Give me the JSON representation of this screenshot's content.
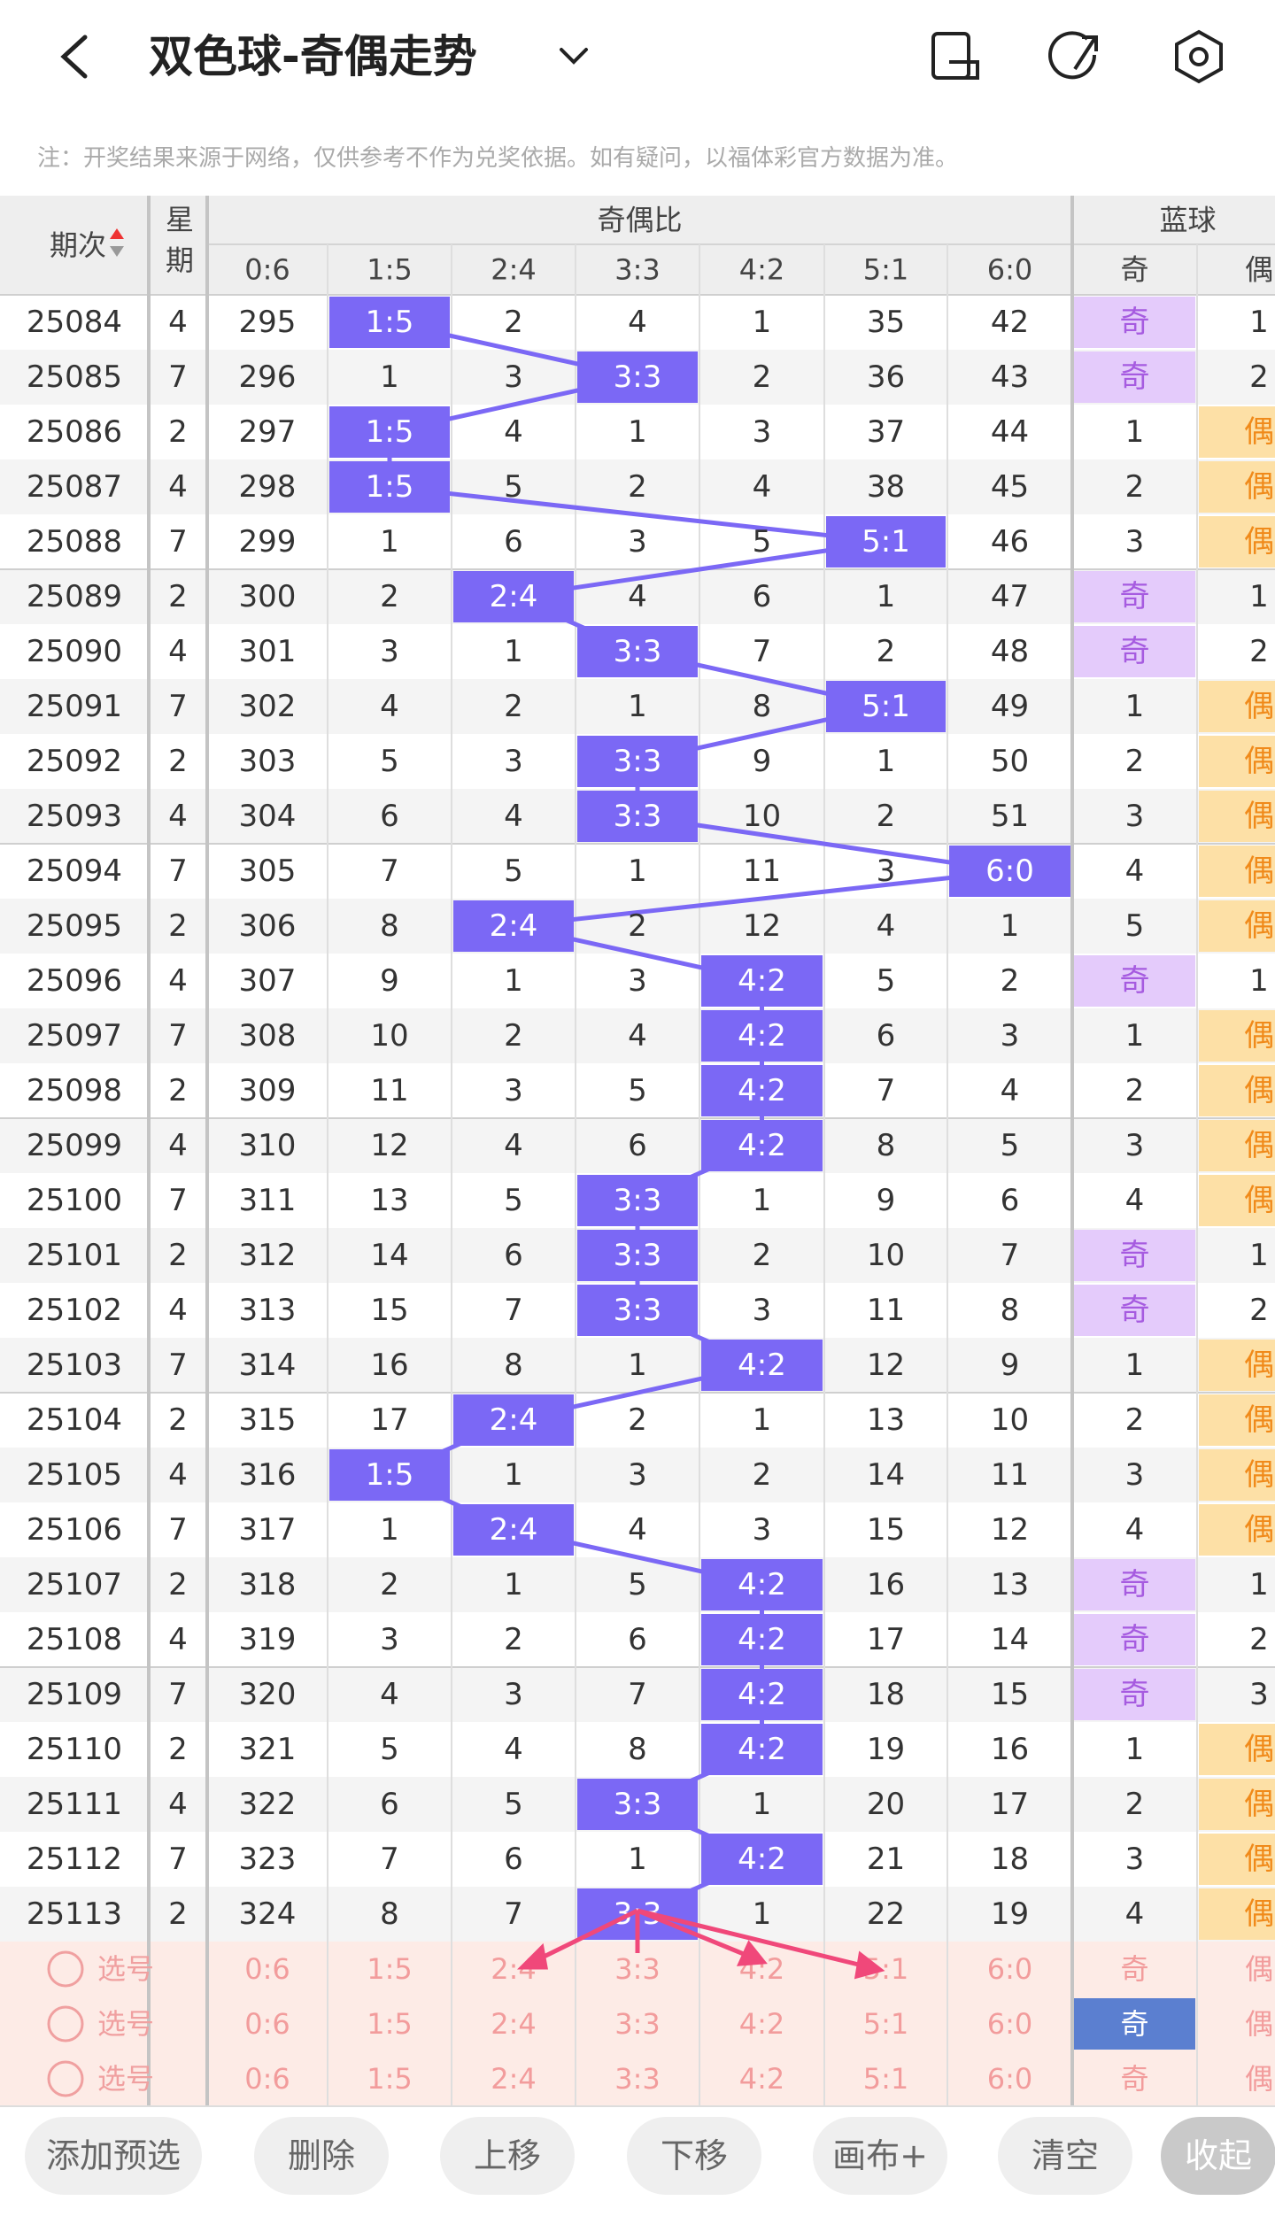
{
  "header": {
    "title": "双色球-奇偶走势"
  },
  "notice": "注：开奖结果来源于网络，仅供参考不作为兑奖依据。如有疑问，以福体彩官方数据为准。",
  "table": {
    "group_headers": {
      "period": "期次",
      "week": "星期",
      "ratio": "奇偶比",
      "blue": "蓝球"
    },
    "columns": [
      "0:6",
      "1:5",
      "2:4",
      "3:3",
      "4:2",
      "5:1",
      "6:0",
      "奇",
      "偶"
    ],
    "rows": [
      [
        "25084",
        "4",
        "295",
        "1:5",
        "2",
        "4",
        "1",
        "35",
        "42",
        "奇",
        "1"
      ],
      [
        "25085",
        "7",
        "296",
        "1",
        "3",
        "3:3",
        "2",
        "36",
        "43",
        "奇",
        "2"
      ],
      [
        "25086",
        "2",
        "297",
        "1:5",
        "4",
        "1",
        "3",
        "37",
        "44",
        "1",
        "偶"
      ],
      [
        "25087",
        "4",
        "298",
        "1:5",
        "5",
        "2",
        "4",
        "38",
        "45",
        "2",
        "偶"
      ],
      [
        "25088",
        "7",
        "299",
        "1",
        "6",
        "3",
        "5",
        "5:1",
        "46",
        "3",
        "偶"
      ],
      [
        "25089",
        "2",
        "300",
        "2",
        "2:4",
        "4",
        "6",
        "1",
        "47",
        "奇",
        "1"
      ],
      [
        "25090",
        "4",
        "301",
        "3",
        "1",
        "3:3",
        "7",
        "2",
        "48",
        "奇",
        "2"
      ],
      [
        "25091",
        "7",
        "302",
        "4",
        "2",
        "1",
        "8",
        "5:1",
        "49",
        "1",
        "偶"
      ],
      [
        "25092",
        "2",
        "303",
        "5",
        "3",
        "3:3",
        "9",
        "1",
        "50",
        "2",
        "偶"
      ],
      [
        "25093",
        "4",
        "304",
        "6",
        "4",
        "3:3",
        "10",
        "2",
        "51",
        "3",
        "偶"
      ],
      [
        "25094",
        "7",
        "305",
        "7",
        "5",
        "1",
        "11",
        "3",
        "6:0",
        "4",
        "偶"
      ],
      [
        "25095",
        "2",
        "306",
        "8",
        "2:4",
        "2",
        "12",
        "4",
        "1",
        "5",
        "偶"
      ],
      [
        "25096",
        "4",
        "307",
        "9",
        "1",
        "3",
        "4:2",
        "5",
        "2",
        "奇",
        "1"
      ],
      [
        "25097",
        "7",
        "308",
        "10",
        "2",
        "4",
        "4:2",
        "6",
        "3",
        "1",
        "偶"
      ],
      [
        "25098",
        "2",
        "309",
        "11",
        "3",
        "5",
        "4:2",
        "7",
        "4",
        "2",
        "偶"
      ],
      [
        "25099",
        "4",
        "310",
        "12",
        "4",
        "6",
        "4:2",
        "8",
        "5",
        "3",
        "偶"
      ],
      [
        "25100",
        "7",
        "311",
        "13",
        "5",
        "3:3",
        "1",
        "9",
        "6",
        "4",
        "偶"
      ],
      [
        "25101",
        "2",
        "312",
        "14",
        "6",
        "3:3",
        "2",
        "10",
        "7",
        "奇",
        "1"
      ],
      [
        "25102",
        "4",
        "313",
        "15",
        "7",
        "3:3",
        "3",
        "11",
        "8",
        "奇",
        "2"
      ],
      [
        "25103",
        "7",
        "314",
        "16",
        "8",
        "1",
        "4:2",
        "12",
        "9",
        "1",
        "偶"
      ],
      [
        "25104",
        "2",
        "315",
        "17",
        "2:4",
        "2",
        "1",
        "13",
        "10",
        "2",
        "偶"
      ],
      [
        "25105",
        "4",
        "316",
        "1:5",
        "1",
        "3",
        "2",
        "14",
        "11",
        "3",
        "偶"
      ],
      [
        "25106",
        "7",
        "317",
        "1",
        "2:4",
        "4",
        "3",
        "15",
        "12",
        "4",
        "偶"
      ],
      [
        "25107",
        "2",
        "318",
        "2",
        "1",
        "5",
        "4:2",
        "16",
        "13",
        "奇",
        "1"
      ],
      [
        "25108",
        "4",
        "319",
        "3",
        "2",
        "6",
        "4:2",
        "17",
        "14",
        "奇",
        "2"
      ],
      [
        "25109",
        "7",
        "320",
        "4",
        "3",
        "7",
        "4:2",
        "18",
        "15",
        "奇",
        "3"
      ],
      [
        "25110",
        "2",
        "321",
        "5",
        "4",
        "8",
        "4:2",
        "19",
        "16",
        "1",
        "偶"
      ],
      [
        "25111",
        "4",
        "322",
        "6",
        "5",
        "3:3",
        "1",
        "20",
        "17",
        "2",
        "偶"
      ],
      [
        "25112",
        "7",
        "323",
        "7",
        "6",
        "1",
        "4:2",
        "21",
        "18",
        "3",
        "偶"
      ],
      [
        "25113",
        "2",
        "324",
        "8",
        "7",
        "3:3",
        "1",
        "22",
        "19",
        "4",
        "偶"
      ]
    ],
    "selection_rows": [
      {
        "label": "选号"
      },
      {
        "label": "选号",
        "selected": "奇"
      },
      {
        "label": "选号"
      }
    ]
  },
  "buttons": [
    "添加预选",
    "删除",
    "上移",
    "下移",
    "画布+",
    "清空",
    "收起"
  ]
}
